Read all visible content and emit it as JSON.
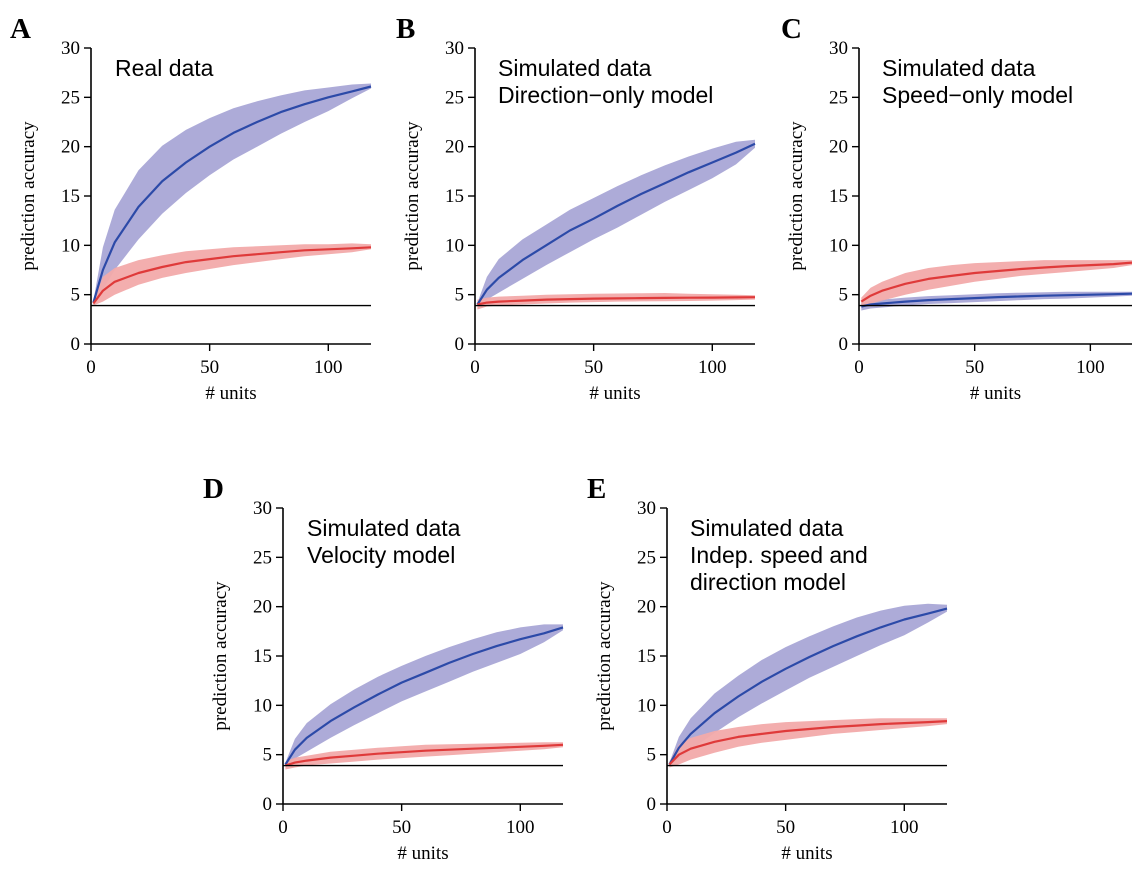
{
  "colors": {
    "blue_line": "#2c4aa8",
    "blue_band": "#a9a6d6",
    "red_line": "#df3a3a",
    "red_band": "#f2aaaa",
    "baseline": "#000000"
  },
  "chart_data": [
    {
      "panel": "A",
      "type": "line",
      "annotation": [
        "Real data"
      ],
      "xlabel": "# units",
      "ylabel": "prediction accuracy",
      "xlim": [
        0,
        118
      ],
      "ylim": [
        0,
        30
      ],
      "xticks": [
        0,
        50,
        100
      ],
      "yticks": [
        0,
        5,
        10,
        15,
        20,
        25,
        30
      ],
      "baseline_y": 3.9,
      "x": [
        1,
        5,
        10,
        20,
        30,
        40,
        50,
        60,
        70,
        80,
        90,
        100,
        110,
        118
      ],
      "series": [
        {
          "color": "blue",
          "mean": [
            4.2,
            7.5,
            10.3,
            13.9,
            16.5,
            18.4,
            20.0,
            21.4,
            22.5,
            23.5,
            24.3,
            25.0,
            25.6,
            26.1
          ],
          "lower": [
            4.0,
            5.5,
            7.5,
            10.6,
            13.2,
            15.3,
            17.1,
            18.7,
            20.0,
            21.3,
            22.5,
            23.6,
            24.9,
            25.9
          ],
          "upper": [
            4.4,
            9.8,
            13.6,
            17.6,
            20.1,
            21.7,
            22.9,
            23.9,
            24.6,
            25.2,
            25.7,
            26.0,
            26.3,
            26.4
          ]
        },
        {
          "color": "red",
          "mean": [
            4.1,
            5.4,
            6.3,
            7.2,
            7.8,
            8.3,
            8.6,
            8.9,
            9.1,
            9.3,
            9.5,
            9.6,
            9.7,
            9.8
          ],
          "lower": [
            3.9,
            4.3,
            5.0,
            6.0,
            6.7,
            7.2,
            7.6,
            8.0,
            8.3,
            8.6,
            8.9,
            9.1,
            9.3,
            9.6
          ],
          "upper": [
            4.3,
            6.8,
            7.7,
            8.5,
            9.0,
            9.4,
            9.6,
            9.8,
            9.9,
            10.0,
            10.1,
            10.1,
            10.2,
            10.1
          ]
        }
      ]
    },
    {
      "panel": "B",
      "type": "line",
      "annotation": [
        "Simulated data",
        "Direction−only model"
      ],
      "xlabel": "# units",
      "ylabel": "prediction accuracy",
      "xlim": [
        0,
        118
      ],
      "ylim": [
        0,
        30
      ],
      "xticks": [
        0,
        50,
        100
      ],
      "yticks": [
        0,
        5,
        10,
        15,
        20,
        25,
        30
      ],
      "baseline_y": 3.9,
      "x": [
        1,
        5,
        10,
        20,
        30,
        40,
        50,
        60,
        70,
        80,
        90,
        100,
        110,
        118
      ],
      "series": [
        {
          "color": "blue",
          "mean": [
            4.0,
            5.5,
            6.7,
            8.5,
            10.0,
            11.5,
            12.7,
            14.0,
            15.2,
            16.3,
            17.4,
            18.4,
            19.4,
            20.3
          ],
          "lower": [
            3.8,
            4.5,
            5.2,
            6.6,
            8.0,
            9.3,
            10.6,
            11.8,
            13.1,
            14.4,
            15.6,
            16.8,
            18.2,
            19.9
          ],
          "upper": [
            4.2,
            6.8,
            8.6,
            10.6,
            12.1,
            13.6,
            14.8,
            16.0,
            17.1,
            18.1,
            19.0,
            19.8,
            20.5,
            20.7
          ]
        },
        {
          "color": "red",
          "mean": [
            4.0,
            4.2,
            4.3,
            4.4,
            4.5,
            4.55,
            4.6,
            4.62,
            4.65,
            4.67,
            4.69,
            4.7,
            4.72,
            4.74
          ],
          "lower": [
            3.5,
            3.8,
            3.9,
            4.0,
            4.1,
            4.2,
            4.25,
            4.3,
            4.32,
            4.34,
            4.36,
            4.4,
            4.45,
            4.5
          ],
          "upper": [
            4.5,
            4.7,
            4.8,
            4.9,
            5.0,
            5.05,
            5.1,
            5.12,
            5.15,
            5.17,
            5.1,
            5.05,
            5.0,
            4.95
          ]
        }
      ]
    },
    {
      "panel": "C",
      "type": "line",
      "annotation": [
        "Simulated data",
        "Speed−only model"
      ],
      "xlabel": "# units",
      "ylabel": "prediction accuracy",
      "xlim": [
        0,
        118
      ],
      "ylim": [
        0,
        30
      ],
      "xticks": [
        0,
        50,
        100
      ],
      "yticks": [
        0,
        5,
        10,
        15,
        20,
        25,
        30
      ],
      "baseline_y": 3.9,
      "x": [
        1,
        5,
        10,
        20,
        30,
        40,
        50,
        60,
        70,
        80,
        90,
        100,
        110,
        118
      ],
      "series": [
        {
          "color": "blue",
          "mean": [
            3.8,
            4.0,
            4.1,
            4.3,
            4.45,
            4.55,
            4.65,
            4.75,
            4.82,
            4.9,
            4.95,
            5.0,
            5.05,
            5.1
          ],
          "lower": [
            3.4,
            3.6,
            3.7,
            3.9,
            4.05,
            4.15,
            4.25,
            4.35,
            4.45,
            4.55,
            4.6,
            4.7,
            4.8,
            4.9
          ],
          "upper": [
            4.2,
            4.4,
            4.5,
            4.7,
            4.85,
            4.95,
            5.05,
            5.15,
            5.2,
            5.25,
            5.3,
            5.3,
            5.3,
            5.3
          ]
        },
        {
          "color": "red",
          "mean": [
            4.3,
            4.9,
            5.4,
            6.1,
            6.6,
            6.9,
            7.2,
            7.4,
            7.6,
            7.75,
            7.9,
            8.0,
            8.1,
            8.25
          ],
          "lower": [
            3.9,
            4.1,
            4.4,
            5.0,
            5.5,
            5.9,
            6.3,
            6.6,
            6.9,
            7.1,
            7.3,
            7.5,
            7.7,
            8.0
          ],
          "upper": [
            4.7,
            5.7,
            6.3,
            7.2,
            7.7,
            8.0,
            8.2,
            8.3,
            8.4,
            8.5,
            8.5,
            8.5,
            8.5,
            8.5
          ]
        }
      ]
    },
    {
      "panel": "D",
      "type": "line",
      "annotation": [
        "Simulated data",
        "Velocity model"
      ],
      "xlabel": "# units",
      "ylabel": "prediction accuracy",
      "xlim": [
        0,
        118
      ],
      "ylim": [
        0,
        30
      ],
      "xticks": [
        0,
        50,
        100
      ],
      "yticks": [
        0,
        5,
        10,
        15,
        20,
        25,
        30
      ],
      "baseline_y": 3.9,
      "x": [
        1,
        5,
        10,
        20,
        30,
        40,
        50,
        60,
        70,
        80,
        90,
        100,
        110,
        118
      ],
      "series": [
        {
          "color": "blue",
          "mean": [
            4.0,
            5.5,
            6.7,
            8.4,
            9.8,
            11.1,
            12.3,
            13.3,
            14.3,
            15.2,
            16.0,
            16.7,
            17.3,
            17.9
          ],
          "lower": [
            3.8,
            4.6,
            5.3,
            6.7,
            8.0,
            9.2,
            10.4,
            11.4,
            12.4,
            13.4,
            14.3,
            15.2,
            16.4,
            17.6
          ],
          "upper": [
            4.2,
            6.6,
            8.2,
            10.1,
            11.6,
            12.9,
            14.0,
            15.0,
            15.9,
            16.7,
            17.4,
            17.9,
            18.2,
            18.2
          ]
        },
        {
          "color": "red",
          "mean": [
            3.9,
            4.2,
            4.4,
            4.7,
            4.9,
            5.1,
            5.25,
            5.4,
            5.5,
            5.6,
            5.7,
            5.8,
            5.9,
            6.0
          ],
          "lower": [
            3.5,
            3.7,
            3.9,
            4.1,
            4.3,
            4.5,
            4.65,
            4.8,
            4.95,
            5.1,
            5.25,
            5.4,
            5.55,
            5.75
          ],
          "upper": [
            4.3,
            4.7,
            4.9,
            5.3,
            5.5,
            5.7,
            5.85,
            6.0,
            6.05,
            6.1,
            6.15,
            6.2,
            6.25,
            6.25
          ]
        }
      ]
    },
    {
      "panel": "E",
      "type": "line",
      "annotation": [
        "Simulated data",
        "Indep. speed and",
        "direction model"
      ],
      "xlabel": "# units",
      "ylabel": "prediction accuracy",
      "xlim": [
        0,
        118
      ],
      "ylim": [
        0,
        30
      ],
      "xticks": [
        0,
        50,
        100
      ],
      "yticks": [
        0,
        5,
        10,
        15,
        20,
        25,
        30
      ],
      "baseline_y": 3.9,
      "x": [
        1,
        5,
        10,
        20,
        30,
        40,
        50,
        60,
        70,
        80,
        90,
        100,
        110,
        118
      ],
      "series": [
        {
          "color": "blue",
          "mean": [
            4.0,
            5.7,
            7.1,
            9.2,
            10.9,
            12.4,
            13.7,
            14.9,
            16.0,
            17.0,
            17.9,
            18.7,
            19.3,
            19.8
          ],
          "lower": [
            3.8,
            4.6,
            5.5,
            7.2,
            8.8,
            10.2,
            11.5,
            12.8,
            13.9,
            15.0,
            16.1,
            17.1,
            18.4,
            19.5
          ],
          "upper": [
            4.2,
            6.8,
            8.7,
            11.2,
            13.0,
            14.6,
            15.9,
            17.0,
            18.0,
            18.9,
            19.6,
            20.1,
            20.3,
            20.2
          ]
        },
        {
          "color": "red",
          "mean": [
            4.0,
            5.0,
            5.6,
            6.3,
            6.8,
            7.1,
            7.4,
            7.6,
            7.8,
            7.95,
            8.1,
            8.2,
            8.3,
            8.4
          ],
          "lower": [
            3.7,
            4.0,
            4.5,
            5.2,
            5.8,
            6.2,
            6.5,
            6.8,
            7.1,
            7.3,
            7.5,
            7.7,
            7.9,
            8.1
          ],
          "upper": [
            4.3,
            6.0,
            6.7,
            7.4,
            7.8,
            8.1,
            8.3,
            8.4,
            8.5,
            8.6,
            8.7,
            8.7,
            8.7,
            8.7
          ]
        }
      ]
    }
  ]
}
